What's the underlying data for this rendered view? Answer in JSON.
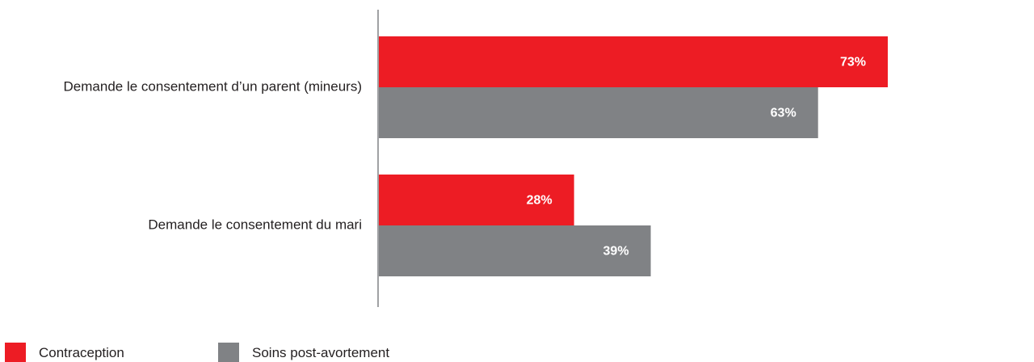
{
  "chart_data": {
    "type": "bar",
    "orientation": "horizontal",
    "categories": [
      "Demande le consentement d’un parent (mineurs)",
      "Demande le consentement du mari"
    ],
    "series": [
      {
        "name": "Contraception",
        "color": "#ed1c24",
        "values": [
          73,
          28
        ]
      },
      {
        "name": "Soins post-avortement",
        "color": "#808285",
        "values": [
          63,
          39
        ]
      }
    ],
    "value_suffix": "%",
    "xlim": [
      0,
      100
    ],
    "grid": false,
    "legend_position": "bottom-left"
  }
}
